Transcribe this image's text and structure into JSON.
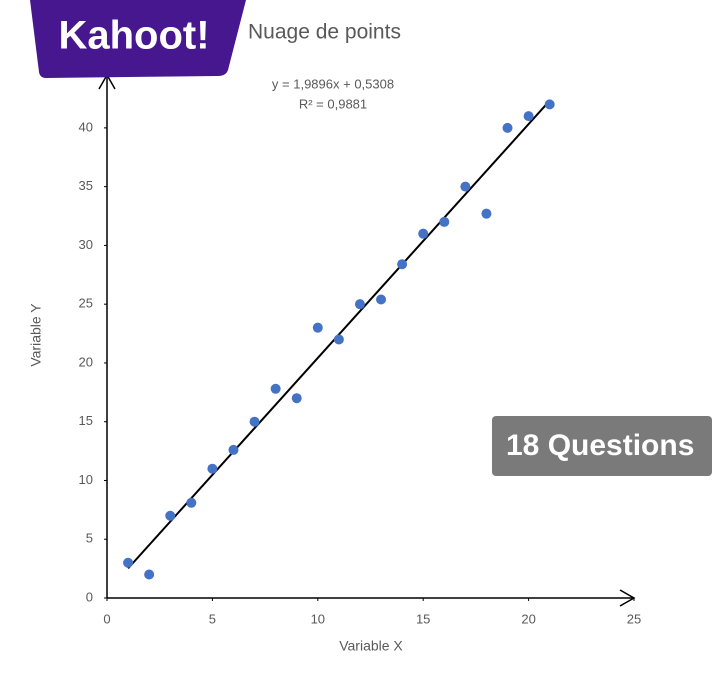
{
  "chart_data": {
    "type": "scatter",
    "title": "Nuage de points",
    "x_label": "Variable X",
    "y_label": "Variable Y",
    "series": [
      {
        "name": "Variable Y",
        "color": "#4472c4",
        "x": [
          1,
          2,
          3,
          4,
          5,
          6,
          7,
          8,
          9,
          10,
          11,
          12,
          13,
          14,
          15,
          16,
          17,
          18,
          19,
          20,
          21
        ],
        "values": [
          3,
          2,
          7,
          8.1,
          11,
          12.6,
          15,
          17.8,
          17,
          23,
          22,
          25,
          25.4,
          28.4,
          31,
          32,
          35,
          32.7,
          40,
          41,
          42
        ]
      }
    ],
    "trendline": {
      "equation": "y = 1,9896x + 0,5308",
      "r_squared": "R² = 0,9881",
      "slope": 1.9896,
      "intercept": 0.5308,
      "color": "#000000"
    },
    "xlim": [
      0,
      25
    ],
    "xticks": [
      0,
      5,
      10,
      15,
      20,
      25
    ],
    "ylim": [
      0,
      44.5
    ],
    "yticks": [
      0,
      5,
      10,
      15,
      20,
      25,
      30,
      35,
      40
    ]
  },
  "overlay": {
    "logo": "Kahoot!",
    "badge": "18 Questions"
  }
}
